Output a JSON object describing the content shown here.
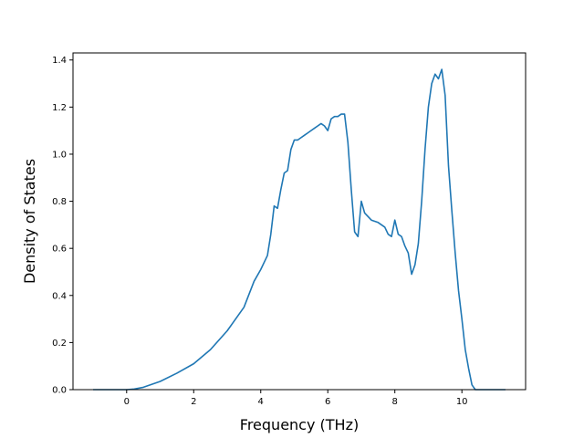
{
  "chart_data": {
    "type": "line",
    "title": "",
    "xlabel": "Frequency (THz)",
    "ylabel": "Density of States",
    "xlim": [
      -1.6,
      11.9
    ],
    "ylim": [
      0.0,
      1.43
    ],
    "xticks": [
      0,
      2,
      4,
      6,
      8,
      10
    ],
    "yticks": [
      0.0,
      0.2,
      0.4,
      0.6,
      0.8,
      1.0,
      1.2,
      1.4
    ],
    "xtick_labels": [
      "0",
      "2",
      "4",
      "6",
      "8",
      "10"
    ],
    "ytick_labels": [
      "0.0",
      "0.2",
      "0.4",
      "0.6",
      "0.8",
      "1.0",
      "1.2",
      "1.4"
    ],
    "grid": false,
    "legend": "none",
    "colors": {
      "line": "#1f77b4",
      "axes": "#000000",
      "background": "#ffffff"
    },
    "series": [
      {
        "x": [
          -1.0,
          -0.5,
          0.0,
          0.2,
          0.5,
          1.0,
          1.5,
          2.0,
          2.5,
          3.0,
          3.5,
          3.8,
          4.0,
          4.1,
          4.2,
          4.3,
          4.4,
          4.5,
          4.6,
          4.7,
          4.8,
          4.9,
          5.0,
          5.1,
          5.2,
          5.3,
          5.4,
          5.5,
          5.6,
          5.7,
          5.8,
          5.9,
          6.0,
          6.1,
          6.2,
          6.3,
          6.4,
          6.5,
          6.6,
          6.7,
          6.8,
          6.9,
          7.0,
          7.1,
          7.3,
          7.5,
          7.7,
          7.8,
          7.9,
          8.0,
          8.1,
          8.2,
          8.3,
          8.4,
          8.5,
          8.6,
          8.7,
          8.8,
          8.9,
          9.0,
          9.1,
          9.2,
          9.3,
          9.4,
          9.5,
          9.6,
          9.7,
          9.8,
          9.9,
          10.0,
          10.1,
          10.2,
          10.3,
          10.4,
          10.6,
          10.9,
          11.3
        ],
        "y": [
          0.0,
          0.0,
          0.0,
          0.002,
          0.01,
          0.035,
          0.07,
          0.11,
          0.17,
          0.25,
          0.35,
          0.46,
          0.51,
          0.54,
          0.57,
          0.66,
          0.78,
          0.77,
          0.85,
          0.92,
          0.93,
          1.02,
          1.06,
          1.06,
          1.07,
          1.08,
          1.09,
          1.1,
          1.11,
          1.12,
          1.13,
          1.12,
          1.1,
          1.15,
          1.16,
          1.16,
          1.17,
          1.17,
          1.05,
          0.85,
          0.67,
          0.65,
          0.8,
          0.75,
          0.72,
          0.71,
          0.69,
          0.66,
          0.65,
          0.72,
          0.66,
          0.65,
          0.61,
          0.58,
          0.49,
          0.53,
          0.62,
          0.8,
          1.02,
          1.2,
          1.3,
          1.34,
          1.32,
          1.36,
          1.25,
          0.95,
          0.76,
          0.58,
          0.42,
          0.3,
          0.17,
          0.09,
          0.02,
          0.0,
          0.0,
          0.0,
          0.0
        ]
      }
    ]
  }
}
